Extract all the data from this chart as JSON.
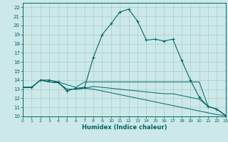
{
  "xlabel": "Humidex (Indice chaleur)",
  "bg_color": "#cce8e8",
  "grid_color": "#aacccc",
  "line_color": "#006666",
  "xlim": [
    0,
    23
  ],
  "ylim": [
    10,
    22.5
  ],
  "xticks": [
    0,
    1,
    2,
    3,
    4,
    5,
    6,
    7,
    8,
    9,
    10,
    11,
    12,
    13,
    14,
    15,
    16,
    17,
    18,
    19,
    20,
    21,
    22,
    23
  ],
  "yticks": [
    10,
    11,
    12,
    13,
    14,
    15,
    16,
    17,
    18,
    19,
    20,
    21,
    22
  ],
  "main_x": [
    0,
    1,
    2,
    3,
    4,
    5,
    6,
    7,
    8,
    9,
    10,
    11,
    12,
    13,
    14,
    15,
    16,
    17,
    18,
    19,
    20,
    21,
    22,
    23
  ],
  "main_y": [
    13.2,
    13.2,
    14.0,
    14.0,
    13.8,
    12.8,
    13.1,
    13.2,
    16.5,
    19.0,
    20.2,
    21.5,
    21.8,
    20.5,
    18.4,
    18.5,
    18.3,
    18.5,
    16.2,
    14.0,
    12.1,
    11.1,
    10.8,
    10.1
  ],
  "line2_y": [
    13.2,
    13.2,
    14.0,
    13.8,
    13.8,
    13.5,
    13.2,
    13.8,
    13.8,
    13.8,
    13.8,
    13.8,
    13.8,
    13.8,
    13.8,
    13.8,
    13.8,
    13.8,
    13.8,
    13.8,
    13.8,
    11.1,
    10.8,
    10.1
  ],
  "line3_y": [
    13.2,
    13.2,
    14.0,
    13.8,
    13.7,
    13.0,
    13.0,
    13.1,
    13.3,
    13.2,
    13.1,
    13.0,
    12.9,
    12.8,
    12.7,
    12.6,
    12.5,
    12.5,
    12.3,
    12.1,
    11.9,
    11.1,
    10.8,
    10.1
  ],
  "line4_y": [
    13.2,
    13.2,
    14.0,
    13.8,
    13.7,
    13.0,
    13.0,
    13.1,
    13.0,
    12.8,
    12.6,
    12.4,
    12.2,
    12.0,
    11.8,
    11.6,
    11.4,
    11.2,
    11.0,
    10.8,
    10.6,
    10.4,
    10.2,
    10.1
  ]
}
